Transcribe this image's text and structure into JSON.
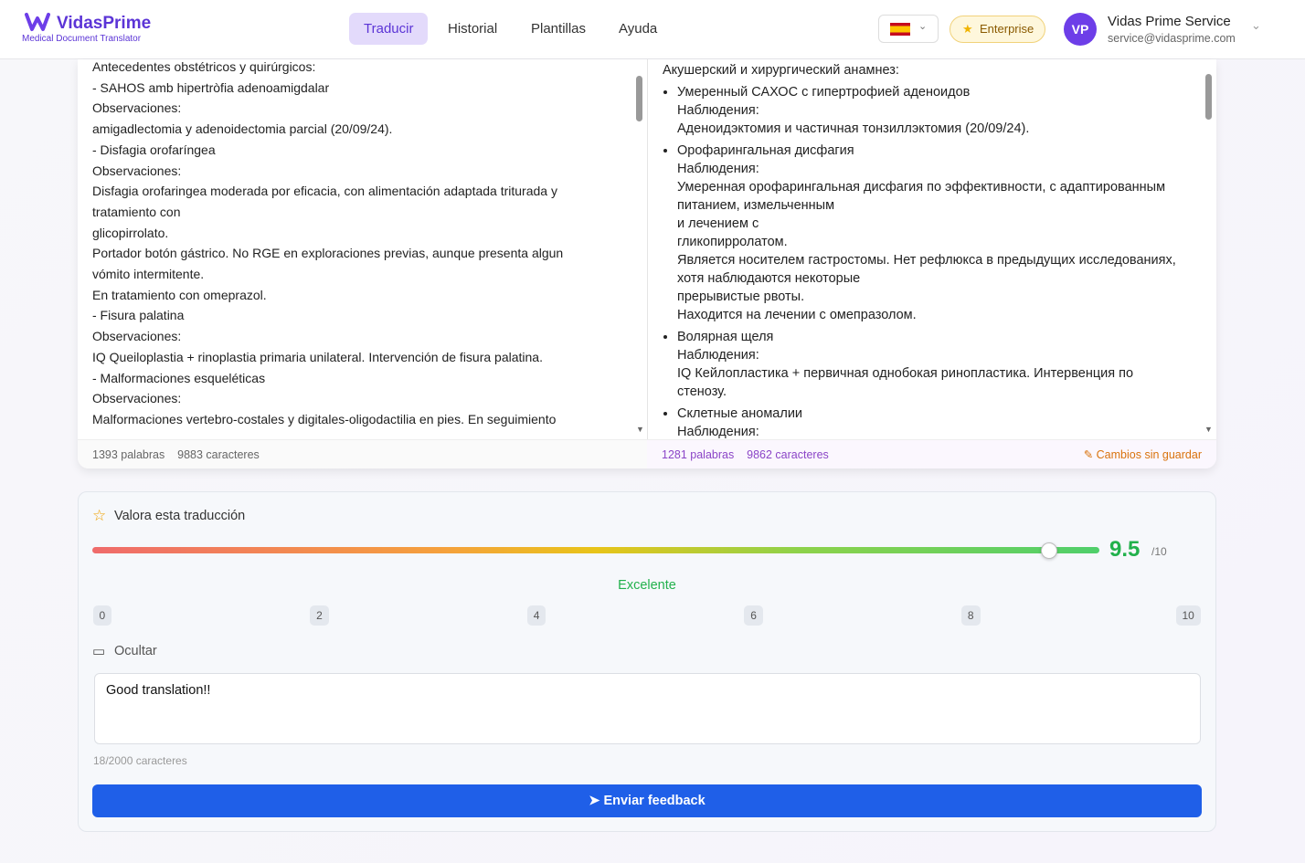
{
  "header": {
    "brand": "VidasPrime",
    "tagline": "Medical Document Translator",
    "nav": [
      "Traducir",
      "Historial",
      "Plantillas",
      "Ayuda"
    ],
    "plan": "Enterprise",
    "avatar": "VP",
    "user_name": "Vidas Prime Service",
    "user_email": "service@vidasprime.com"
  },
  "source": {
    "lines": [
      "Antecedentes obstétricos y quirúrgicos:",
      "- SAHOS amb hipertròfia adenoamigdalar",
      "Observaciones:",
      "amigadlectomia y adenoidectomia parcial (20/09/24).",
      "- Disfagia orofaríngea",
      "Observaciones:",
      "Disfagia orofaringea moderada por eficacia, con alimentación adaptada triturada y tratamiento con",
      "glicopirrolato.",
      "Portador botón gástrico. No RGE en exploraciones previas, aunque presenta algun vómito intermitente.",
      "En tratamiento con omeprazol.",
      "- Fisura palatina",
      "Observaciones:",
      "IQ Queiloplastia + rinoplastia primaria unilateral. Intervención de fisura palatina.",
      "- Malformaciones esqueléticas",
      "Observaciones:",
      "Malformaciones vertebro-costales y digitales-oligodactilia en pies. En seguimiento"
    ],
    "words": "1393 palabras",
    "chars": "9883 caracteres"
  },
  "target": {
    "intro": "Акушерский и хирургический анамнез:",
    "items": [
      {
        "title": "Умеренный САХОС с гипертрофией аденоидов",
        "lines": [
          "Наблюдения:",
          "Аденоидэктомия и частичная тонзиллэктомия (20/09/24)."
        ]
      },
      {
        "title": "Орофарингальная дисфагия",
        "lines": [
          "Наблюдения:",
          "Умеренная орофарингальная дисфагия по эффективности, с адаптированным питанием, измельченным",
          "и лечением с",
          "гликопирролатом.",
          "Является носителем гастростомы. Нет рефлюкса в предыдущих исследованиях, хотя наблюдаются некоторые",
          "прерывистые рвоты.",
          "Находится на лечении с омепразолом."
        ]
      },
      {
        "title": "Волярная щеля",
        "lines": [
          "Наблюдения:",
          "IQ Кейлопластика + первичная однобокая ринопластика. Интервенция по стенозу."
        ]
      },
      {
        "title": "Склетные аномалии",
        "lines": [
          "Наблюдения:"
        ]
      }
    ],
    "words": "1281 palabras",
    "chars": "9862 caracteres",
    "status": "Cambios sin guardar"
  },
  "rating": {
    "title": "Valora esta traducción",
    "score": 9.5,
    "max_label": "/10",
    "verdict": "Excelente",
    "scale": [
      0,
      2,
      4,
      6,
      8,
      10
    ],
    "toggle": "Ocultar",
    "comment": "Good translation!!",
    "counter": "18/2000 caracteres",
    "button": "Enviar feedback"
  }
}
